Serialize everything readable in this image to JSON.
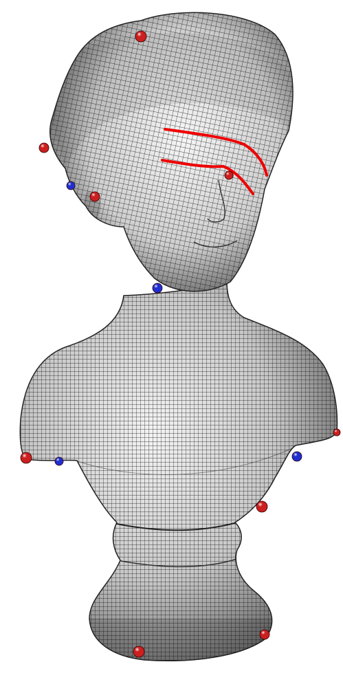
{
  "figure": {
    "subject": "quad-mesh bust",
    "background_color": "#ffffff",
    "mesh_line_color": "#111111",
    "surface_light": "#f2f2f2",
    "surface_dark": "#5a5a5a",
    "singularity_colors": {
      "positive": "#cc1f1f",
      "negative": "#1f2fd1"
    },
    "feature_curve_color": "#ee0000"
  },
  "markers": [
    {
      "type": "positive"
    },
    {
      "type": "positive"
    },
    {
      "type": "negative"
    },
    {
      "type": "positive"
    },
    {
      "type": "positive"
    },
    {
      "type": "negative"
    },
    {
      "type": "positive"
    },
    {
      "type": "negative"
    },
    {
      "type": "negative"
    },
    {
      "type": "positive"
    },
    {
      "type": "positive"
    },
    {
      "type": "positive"
    },
    {
      "type": "positive"
    }
  ],
  "feature_curves": [
    {
      "name": "upper-brow-curve"
    },
    {
      "name": "lower-brow-curve"
    }
  ]
}
